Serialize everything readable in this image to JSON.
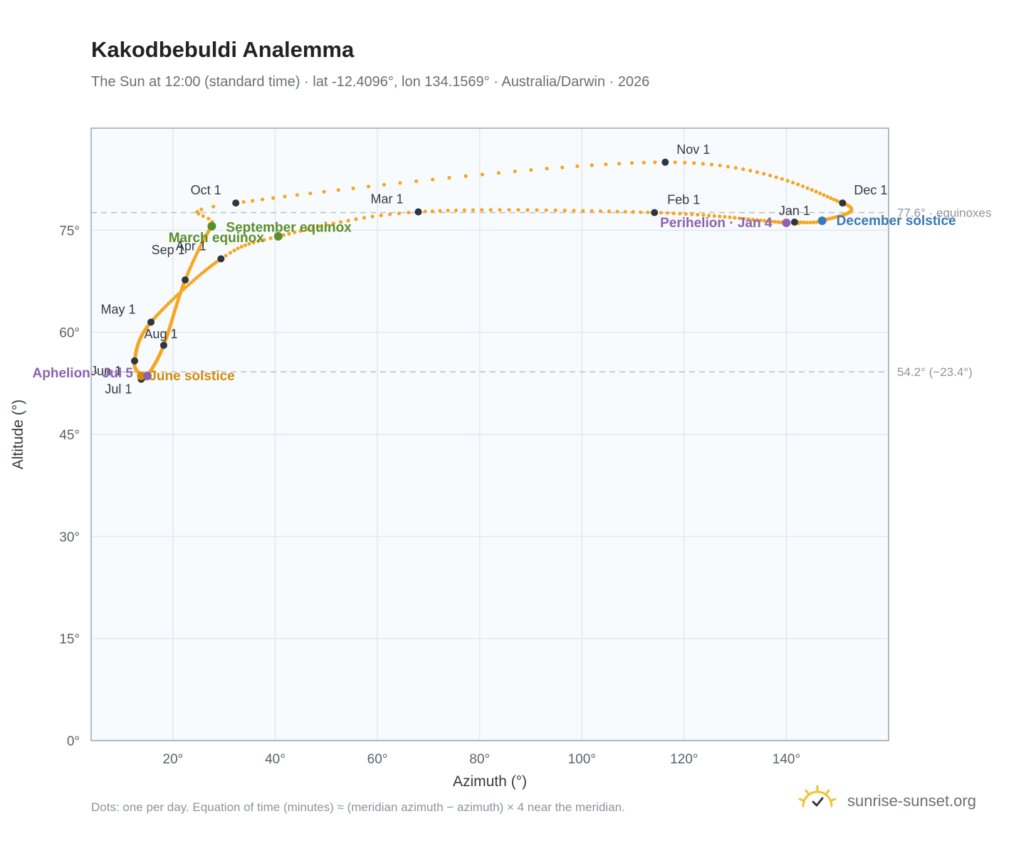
{
  "title": "Kakodbebuldi Analemma",
  "subtitle": "The Sun at 12:00 (standard time) · lat -12.4096°, lon 134.1569° · Australia/Darwin · 2026",
  "footnote": "Dots: one per day. Equation of time (minutes) ≈ (meridian azimuth − azimuth) × 4 near the meridian.",
  "brand": {
    "text": "sunrise-sunset.org",
    "icon": "sun-logo-icon"
  },
  "colors": {
    "analemma": "#f5a623",
    "month_marker": "#2f3640",
    "equinox": "#5a8f2a",
    "june_solstice": "#d08c0c",
    "december_solstice": "#3a78b8",
    "apsis": "#8e62b0",
    "reference_line": "#b9bec5",
    "plot_background": "#f8fbfd",
    "grid": "#e3e8ee"
  },
  "chart_data": {
    "type": "scatter",
    "xlabel": "Azimuth (°)",
    "ylabel": "Altitude (°)",
    "xlim": [
      4,
      160
    ],
    "ylim": [
      0,
      90
    ],
    "grid": true,
    "x_ticks": [
      20,
      40,
      60,
      80,
      100,
      120,
      140
    ],
    "x_tick_labels": [
      "20°",
      "40°",
      "60°",
      "80°",
      "100°",
      "120°",
      "140°"
    ],
    "y_ticks": [
      0,
      15,
      30,
      45,
      60,
      75
    ],
    "y_tick_labels": [
      "0°",
      "15°",
      "30°",
      "45°",
      "60°",
      "75°"
    ],
    "reference_lines": [
      {
        "y": 77.6,
        "label": "77.6° · equinoxes"
      },
      {
        "y": 54.2,
        "label": "54.2° (−23.4°)"
      }
    ],
    "key_points": [
      {
        "date": "01-01",
        "x": 141.6,
        "y": 76.2
      },
      {
        "date": "01-04",
        "x": 140.0,
        "y": 76.1
      },
      {
        "date": "02-01",
        "x": 114.2,
        "y": 77.6
      },
      {
        "date": "03-01",
        "x": 68.0,
        "y": 77.7
      },
      {
        "date": "03-20",
        "x": 40.6,
        "y": 74.1
      },
      {
        "date": "04-01",
        "x": 29.4,
        "y": 70.8
      },
      {
        "date": "05-01",
        "x": 15.7,
        "y": 61.5
      },
      {
        "date": "06-01",
        "x": 12.5,
        "y": 55.8
      },
      {
        "date": "06-21",
        "x": 13.8,
        "y": 53.6
      },
      {
        "date": "07-01",
        "x": 13.8,
        "y": 53.1
      },
      {
        "date": "07-05",
        "x": 15.0,
        "y": 53.6
      },
      {
        "date": "08-01",
        "x": 18.2,
        "y": 58.1
      },
      {
        "date": "09-01",
        "x": 22.4,
        "y": 67.7
      },
      {
        "date": "09-23",
        "x": 27.6,
        "y": 75.6
      },
      {
        "date": "10-01",
        "x": 32.3,
        "y": 79.0
      },
      {
        "date": "11-01",
        "x": 116.3,
        "y": 85.0
      },
      {
        "date": "12-01",
        "x": 151.0,
        "y": 79.0
      },
      {
        "date": "12-21",
        "x": 147.0,
        "y": 76.4
      },
      {
        "date": "12-31",
        "x": 141.6,
        "y": 76.2
      }
    ],
    "month_markers": [
      {
        "label": "Jan 1",
        "x": 141.6,
        "y": 76.2
      },
      {
        "label": "Feb 1",
        "x": 114.2,
        "y": 77.6
      },
      {
        "label": "Mar 1",
        "x": 68.0,
        "y": 77.7
      },
      {
        "label": "Apr 1",
        "x": 29.4,
        "y": 70.8
      },
      {
        "label": "May 1",
        "x": 15.7,
        "y": 61.5
      },
      {
        "label": "Jun 1",
        "x": 12.5,
        "y": 55.8
      },
      {
        "label": "Jul 1",
        "x": 13.8,
        "y": 53.1
      },
      {
        "label": "Aug 1",
        "x": 18.2,
        "y": 58.1
      },
      {
        "label": "Sep 1",
        "x": 22.4,
        "y": 67.7
      },
      {
        "label": "Oct 1",
        "x": 32.3,
        "y": 79.0
      },
      {
        "label": "Nov 1",
        "x": 116.3,
        "y": 85.0
      },
      {
        "label": "Dec 1",
        "x": 151.0,
        "y": 79.0
      }
    ],
    "events": [
      {
        "label": "March equinox",
        "x": 40.6,
        "y": 74.1,
        "kind": "equinox"
      },
      {
        "label": "September equinox",
        "x": 27.6,
        "y": 75.6,
        "kind": "equinox"
      },
      {
        "label": "June solstice",
        "x": 13.8,
        "y": 53.6,
        "kind": "june_solstice"
      },
      {
        "label": "December solstice",
        "x": 147.0,
        "y": 76.4,
        "kind": "december_solstice"
      },
      {
        "label": "Perihelion · Jan 4",
        "x": 140.0,
        "y": 76.1,
        "kind": "apsis"
      },
      {
        "label": "Aphelion · Jul 5",
        "x": 15.0,
        "y": 53.6,
        "kind": "apsis"
      }
    ]
  }
}
